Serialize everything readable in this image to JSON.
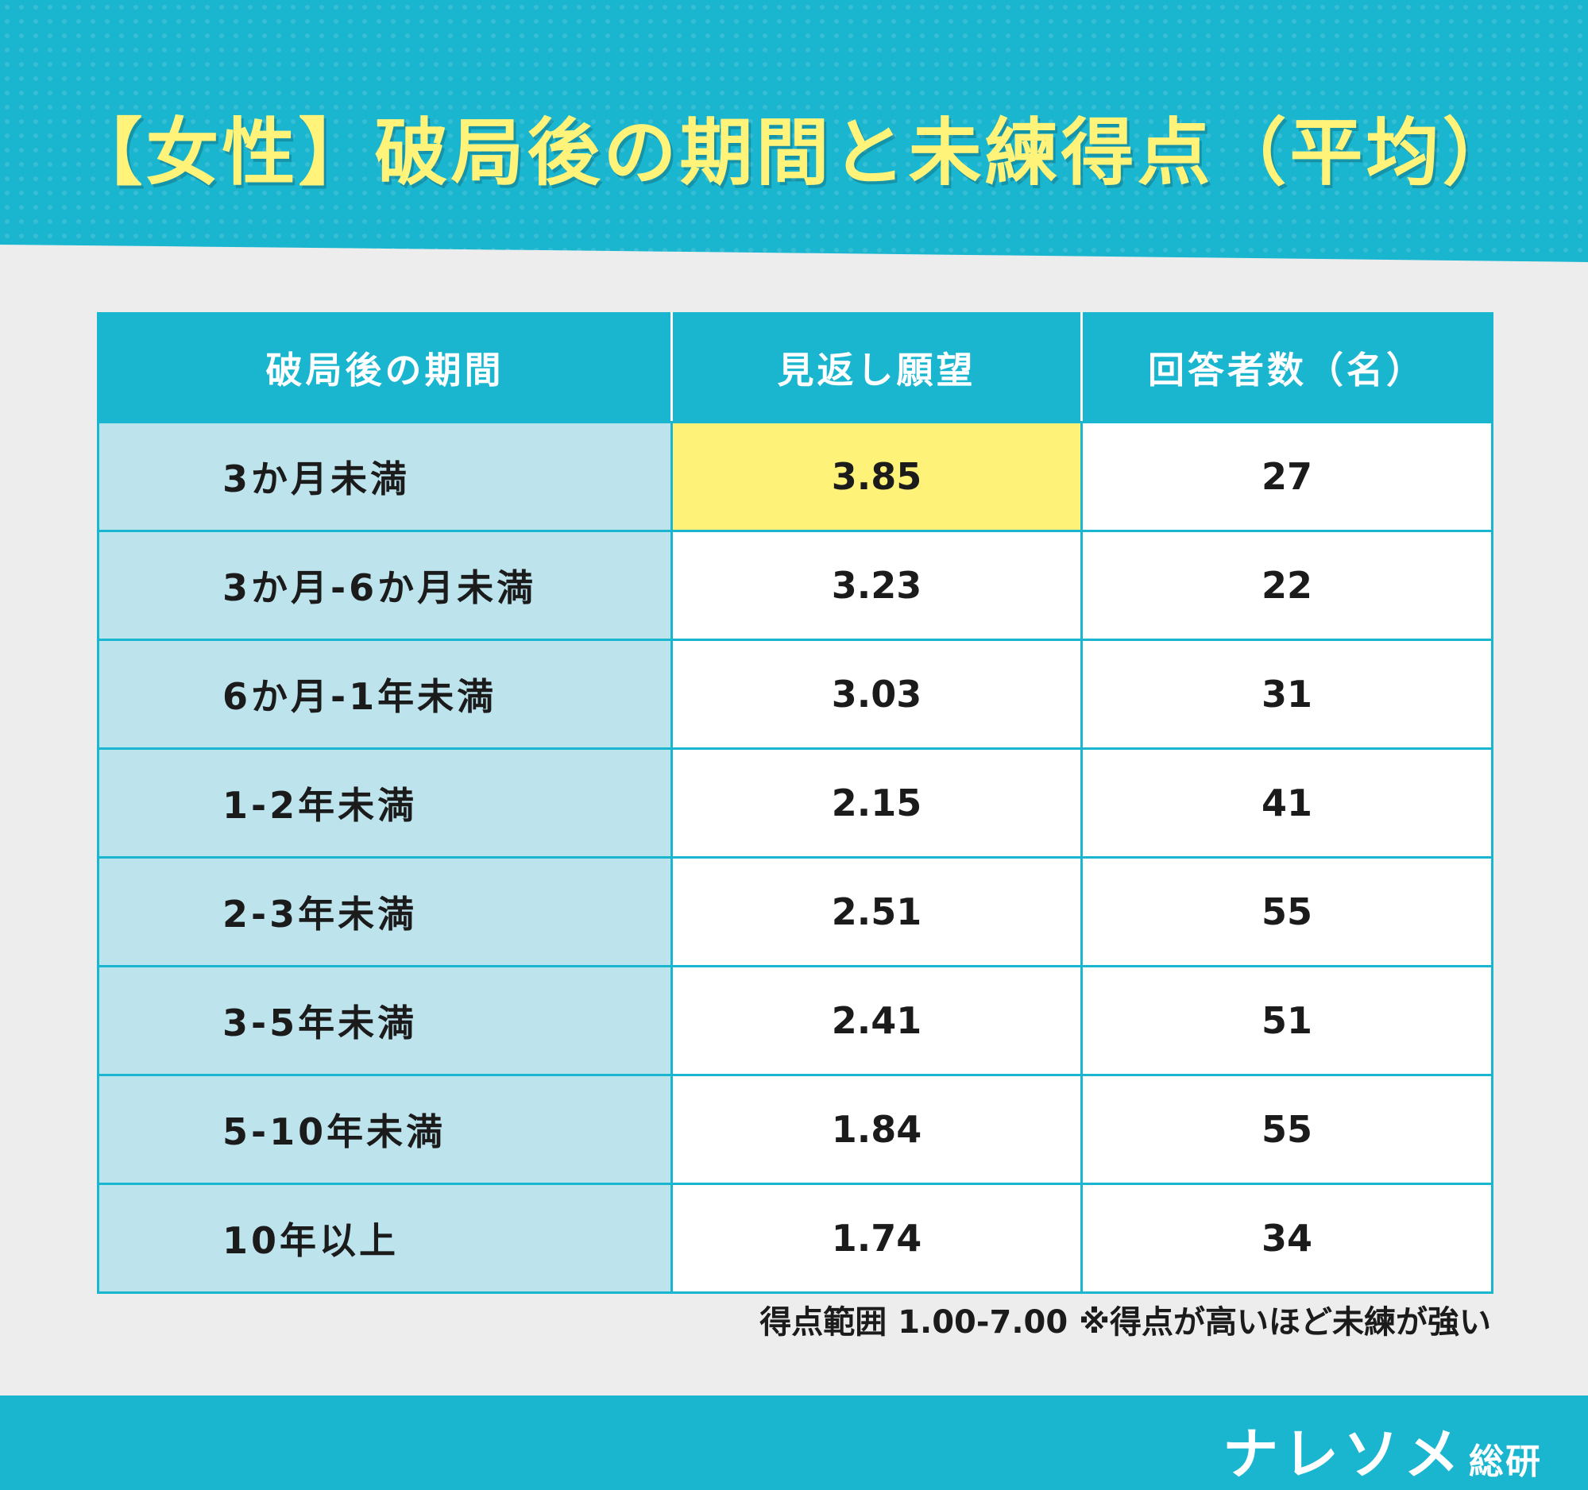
{
  "title": "【女性】破局後の期間と未練得点（平均）",
  "chart_data": {
    "type": "table",
    "columns": [
      "破局後の期間",
      "見返し願望",
      "回答者数（名）"
    ],
    "rows": [
      {
        "period": "3か月未満",
        "score": "3.85",
        "count": "27",
        "highlight": true
      },
      {
        "period": "3か月-6か月未満",
        "score": "3.23",
        "count": "22"
      },
      {
        "period": "6か月-1年未満",
        "score": "3.03",
        "count": "31"
      },
      {
        "period": "1-2年未満",
        "score": "2.15",
        "count": "41"
      },
      {
        "period": "2-3年未満",
        "score": "2.51",
        "count": "55"
      },
      {
        "period": "3-5年未満",
        "score": "2.41",
        "count": "51"
      },
      {
        "period": "5-10年未満",
        "score": "1.84",
        "count": "55"
      },
      {
        "period": "10年以上",
        "score": "1.74",
        "count": "34"
      }
    ]
  },
  "note": "得点範囲 1.00-7.00 ※得点が高いほど未練が強い",
  "footer": {
    "brand_main": "ナレソメ",
    "brand_sub": "総研"
  },
  "colors": {
    "accent": "#1ab5cf",
    "title_yellow": "#fff37a",
    "highlight": "#fff279",
    "label_cell": "#bde3ed",
    "background": "#ededed"
  }
}
